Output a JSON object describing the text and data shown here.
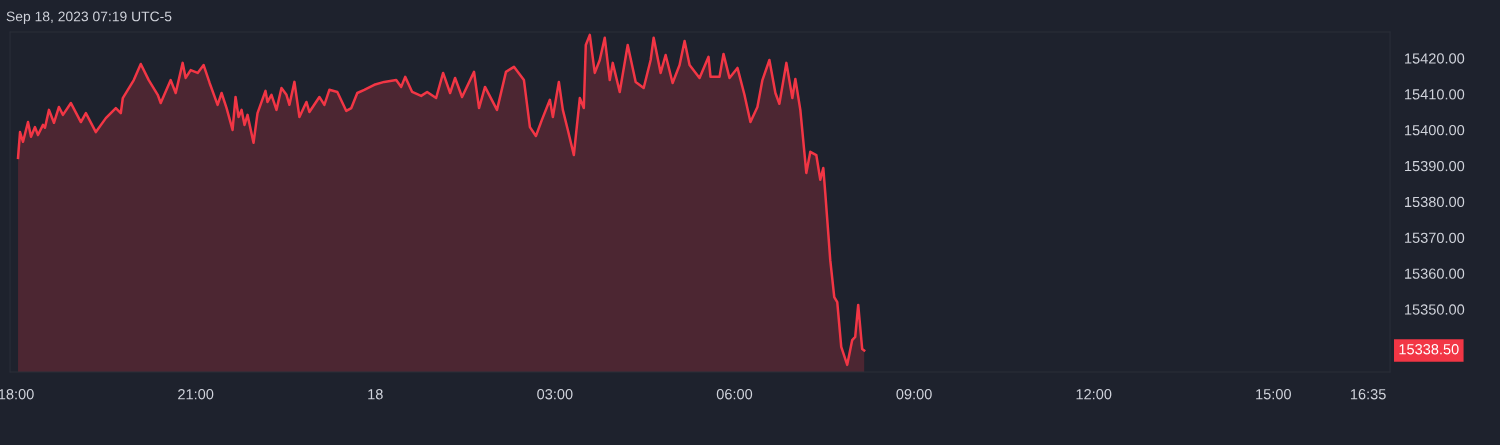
{
  "chart_data": {
    "type": "area",
    "title": "Sep 18, 2023 07:19 UTC-5",
    "xlim": [
      "2023-09-17T17:54",
      "2023-09-18T16:57"
    ],
    "ylim": [
      15332.5,
      15427.3
    ],
    "xticks": [
      {
        "value": "2023-09-17T18:00",
        "label": "18:00"
      },
      {
        "value": "2023-09-17T21:00",
        "label": "21:00"
      },
      {
        "value": "2023-09-18T00:00",
        "label": "18"
      },
      {
        "value": "2023-09-18T03:00",
        "label": "03:00"
      },
      {
        "value": "2023-09-18T06:00",
        "label": "06:00"
      },
      {
        "value": "2023-09-18T09:00",
        "label": "09:00"
      },
      {
        "value": "2023-09-18T12:00",
        "label": "12:00"
      },
      {
        "value": "2023-09-18T15:00",
        "label": "15:00"
      },
      {
        "value": "2023-09-18T16:35",
        "label": "16:35"
      }
    ],
    "yticks": [
      {
        "value": 15350,
        "label": "15350.00"
      },
      {
        "value": 15360,
        "label": "15360.00"
      },
      {
        "value": 15370,
        "label": "15370.00"
      },
      {
        "value": 15380,
        "label": "15380.00"
      },
      {
        "value": 15390,
        "label": "15390.00"
      },
      {
        "value": 15400,
        "label": "15400.00"
      },
      {
        "value": 15410,
        "label": "15410.00"
      },
      {
        "value": 15420,
        "label": "15420.00"
      }
    ],
    "grid": false,
    "legend": false,
    "marker": "none",
    "line_style": "solid",
    "annotations": [
      "15338.50"
    ],
    "series": [
      {
        "color": "#f23645",
        "x": [
          "2023-09-17T18:02",
          "2023-09-17T18:04",
          "2023-09-17T18:07",
          "2023-09-17T18:12",
          "2023-09-17T18:15",
          "2023-09-17T18:19",
          "2023-09-17T18:22",
          "2023-09-17T18:27",
          "2023-09-17T18:29",
          "2023-09-17T18:33",
          "2023-09-17T18:38",
          "2023-09-17T18:43",
          "2023-09-17T18:47",
          "2023-09-17T18:55",
          "2023-09-17T19:05",
          "2023-09-17T19:10",
          "2023-09-17T19:20",
          "2023-09-17T19:30",
          "2023-09-17T19:40",
          "2023-09-17T19:45",
          "2023-09-17T19:47",
          "2023-09-17T19:58",
          "2023-09-17T20:05",
          "2023-09-17T20:13",
          "2023-09-17T20:22",
          "2023-09-17T20:25",
          "2023-09-17T20:35",
          "2023-09-17T20:40",
          "2023-09-17T20:47",
          "2023-09-17T20:50",
          "2023-09-17T20:55",
          "2023-09-17T21:02",
          "2023-09-17T21:08",
          "2023-09-17T21:14",
          "2023-09-17T21:22",
          "2023-09-17T21:26",
          "2023-09-17T21:31",
          "2023-09-17T21:37",
          "2023-09-17T21:40",
          "2023-09-17T21:43",
          "2023-09-17T21:46",
          "2023-09-17T21:49",
          "2023-09-17T21:52",
          "2023-09-17T21:58",
          "2023-09-17T22:02",
          "2023-09-17T22:10",
          "2023-09-17T22:12",
          "2023-09-17T22:16",
          "2023-09-17T22:21",
          "2023-09-17T22:26",
          "2023-09-17T22:31",
          "2023-09-17T22:34",
          "2023-09-17T22:39",
          "2023-09-17T22:44",
          "2023-09-17T22:51",
          "2023-09-17T22:54",
          "2023-09-17T23:04",
          "2023-09-17T23:09",
          "2023-09-17T23:14",
          "2023-09-17T23:22",
          "2023-09-17T23:31",
          "2023-09-17T23:36",
          "2023-09-17T23:42",
          "2023-09-17T23:49",
          "2023-09-17T23:59",
          "2023-09-18T00:09",
          "2023-09-18T00:21",
          "2023-09-18T00:26",
          "2023-09-18T00:30",
          "2023-09-18T00:37",
          "2023-09-18T00:46",
          "2023-09-18T00:52",
          "2023-09-18T01:01",
          "2023-09-18T01:08",
          "2023-09-18T01:15",
          "2023-09-18T01:20",
          "2023-09-18T01:27",
          "2023-09-18T01:39",
          "2023-09-18T01:44",
          "2023-09-18T01:50",
          "2023-09-18T02:02",
          "2023-09-18T02:11",
          "2023-09-18T02:19",
          "2023-09-18T02:29",
          "2023-09-18T02:35",
          "2023-09-18T02:41",
          "2023-09-18T02:47",
          "2023-09-18T02:55",
          "2023-09-18T02:58",
          "2023-09-18T03:04",
          "2023-09-18T03:08",
          "2023-09-18T03:13",
          "2023-09-18T03:19",
          "2023-09-18T03:25",
          "2023-09-18T03:29",
          "2023-09-18T03:31",
          "2023-09-18T03:35",
          "2023-09-18T03:40",
          "2023-09-18T03:45",
          "2023-09-18T03:50",
          "2023-09-18T03:55",
          "2023-09-18T03:58",
          "2023-09-18T04:05",
          "2023-09-18T04:13",
          "2023-09-18T04:21",
          "2023-09-18T04:29",
          "2023-09-18T04:36",
          "2023-09-18T04:39",
          "2023-09-18T04:46",
          "2023-09-18T04:51",
          "2023-09-18T04:58",
          "2023-09-18T05:05",
          "2023-09-18T05:10",
          "2023-09-18T05:15",
          "2023-09-18T05:25",
          "2023-09-18T05:34",
          "2023-09-18T05:36",
          "2023-09-18T05:45",
          "2023-09-18T05:49",
          "2023-09-18T05:55",
          "2023-09-18T06:03",
          "2023-09-18T06:10",
          "2023-09-18T06:16",
          "2023-09-18T06:23",
          "2023-09-18T06:28",
          "2023-09-18T06:35",
          "2023-09-18T06:41",
          "2023-09-18T06:45",
          "2023-09-18T06:52",
          "2023-09-18T06:58",
          "2023-09-18T07:01",
          "2023-09-18T07:06",
          "2023-09-18T07:12",
          "2023-09-18T07:16",
          "2023-09-18T07:22",
          "2023-09-18T07:26",
          "2023-09-18T07:29",
          "2023-09-18T07:31",
          "2023-09-18T07:36",
          "2023-09-18T07:40",
          "2023-09-18T07:43",
          "2023-09-18T07:47",
          "2023-09-18T07:53",
          "2023-09-18T07:58",
          "2023-09-18T08:01",
          "2023-09-18T08:04",
          "2023-09-18T08:08",
          "2023-09-18T08:10"
        ],
        "values": [
          15392.2,
          15399.4,
          15396.7,
          15402.2,
          15398.1,
          15400.8,
          15398.6,
          15401.4,
          15400.6,
          15405.6,
          15402.0,
          15406.4,
          15404.2,
          15407.5,
          15402.2,
          15404.7,
          15399.4,
          15403.3,
          15406.1,
          15404.7,
          15408.9,
          15413.9,
          15418.4,
          15413.9,
          15409.8,
          15407.5,
          15413.9,
          15410.3,
          15418.7,
          15414.5,
          15416.7,
          15415.9,
          15418.1,
          15413.1,
          15407.0,
          15410.3,
          15406.1,
          15400.0,
          15409.2,
          15403.6,
          15405.6,
          15401.4,
          15404.2,
          15396.4,
          15404.7,
          15410.9,
          15407.8,
          15409.8,
          15405.6,
          15411.7,
          15409.8,
          15407.0,
          15413.4,
          15403.6,
          15407.8,
          15405.0,
          15409.2,
          15407.0,
          15411.2,
          15410.6,
          15405.3,
          15406.1,
          15410.3,
          15411.2,
          15412.6,
          15413.4,
          15413.9,
          15412.0,
          15414.8,
          15410.6,
          15409.5,
          15410.6,
          15408.9,
          15415.9,
          15410.3,
          15414.5,
          15409.2,
          15416.2,
          15406.1,
          15412.0,
          15405.6,
          15416.2,
          15417.6,
          15413.9,
          15400.8,
          15398.3,
          15402.8,
          15408.4,
          15403.6,
          15413.4,
          15405.6,
          15400.0,
          15393.0,
          15408.9,
          15406.1,
          15423.7,
          15426.5,
          15415.9,
          15419.5,
          15425.7,
          15413.9,
          15418.7,
          15410.6,
          15423.7,
          15413.4,
          15411.7,
          15419.5,
          15425.7,
          15415.9,
          15420.9,
          15413.1,
          15418.1,
          15424.8,
          15418.1,
          15414.5,
          15420.4,
          15414.8,
          15414.8,
          15421.2,
          15414.5,
          15417.3,
          15409.8,
          15402.2,
          15406.4,
          15413.9,
          15419.5,
          15410.3,
          15407.3,
          15418.7,
          15408.9,
          15414.2,
          15405.6,
          15388.0,
          15393.9,
          15393.0,
          15386.1,
          15389.4,
          15382.4,
          15363.7,
          15353.4,
          15352.0,
          15339.5,
          15334.5,
          15341.4,
          15342.3,
          15351.2,
          15338.9,
          15338.5
        ]
      }
    ]
  }
}
